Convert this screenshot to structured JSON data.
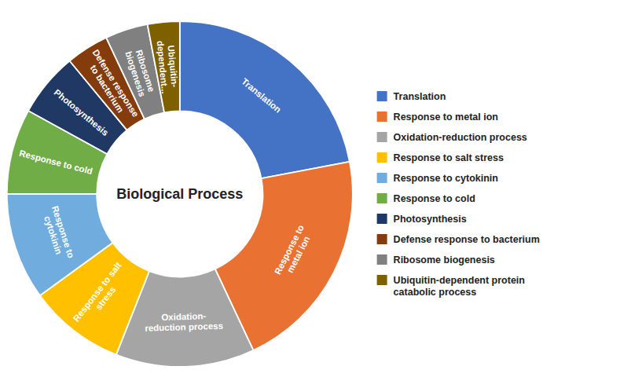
{
  "chart_data": {
    "type": "donut",
    "title": "Biological Process",
    "categories": [
      "Translation",
      "Response to metal ion",
      "Oxidation-reduction process",
      "Response to salt stress",
      "Response to cytokinin",
      "Response to cold",
      "Photosynthesis",
      "Defense response to bacterium",
      "Ribosome biogenesis",
      "Ubiquitin-dependent protein\ncatabolic process"
    ],
    "values": [
      22,
      21,
      13,
      9,
      10,
      8,
      6,
      4,
      4,
      3
    ],
    "colors": [
      "#4472C4",
      "#E97132",
      "#A5A5A5",
      "#FFC000",
      "#70ADDE",
      "#70AD47",
      "#1F3864",
      "#843C0C",
      "#808080",
      "#7F6000"
    ],
    "annotations": [
      "Translation",
      "Response to\nmetal ion",
      "Oxidation-\nreduction process",
      "Response to salt\nstress",
      "Response to\ncytokinin",
      "Response to cold",
      "Photosynthesis",
      "Defense response\nto bacterium",
      "Ribosome\nbiogenesis",
      "Ubiquitin-\ndependent..."
    ],
    "legend": "right"
  }
}
